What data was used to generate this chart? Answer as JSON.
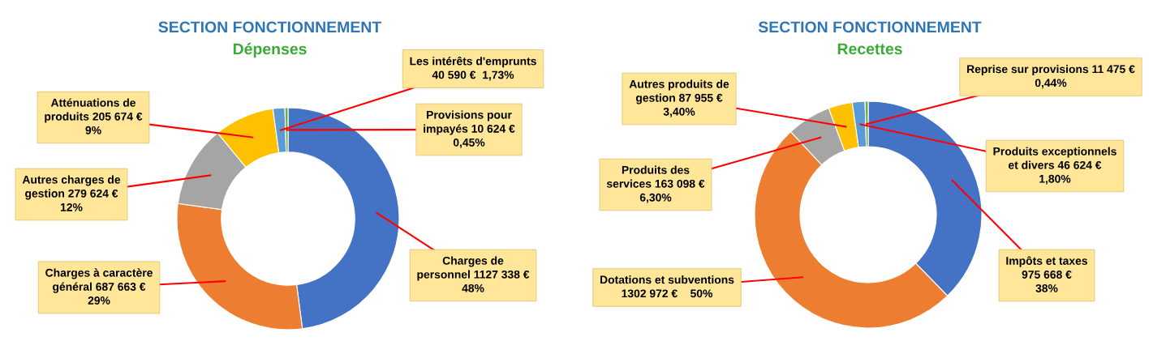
{
  "chart_data": [
    {
      "type": "donut",
      "title": "SECTION FONCTIONNEMENT",
      "subtitle": "Dépenses",
      "categories": [
        "Charges de\npersonnel 1127 338 €\n48%",
        "Charges à caractère\ngénéral 687 663 €\n29%",
        "Autres charges de\ngestion 279 624 €\n12%",
        "Atténuations de\nproduits 205 674 €\n9%",
        "Les intérêts d'emprunts\n40 590 €  1,73%",
        "Provisions pour\nimpayés 10 624 €\n0,45%"
      ],
      "values": [
        1127338,
        687663,
        279624,
        205674,
        40590,
        10624
      ],
      "colors": [
        "#4472c4",
        "#ed7d31",
        "#a5a5a5",
        "#ffc000",
        "#5b9bd5",
        "#70ad47"
      ]
    },
    {
      "type": "donut",
      "title": "SECTION FONCTIONNEMENT",
      "subtitle": "Recettes",
      "categories": [
        "Impôts et taxes\n975 668 €\n38%",
        "Dotations et subventions\n1302 972 €    50%",
        "Produits des\nservices 163 098 €\n6,30%",
        "Autres produits de\ngestion 87 955 €\n3,40%",
        "Produits exceptionnels\net divers 46 624 €\n1,80%",
        "Reprise sur provisions 11 475 €\n0,44%"
      ],
      "values": [
        975668,
        1302972,
        163098,
        87955,
        46624,
        11475
      ],
      "colors": [
        "#4472c4",
        "#ed7d31",
        "#a5a5a5",
        "#ffc000",
        "#5b9bd5",
        "#70ad47"
      ]
    }
  ]
}
